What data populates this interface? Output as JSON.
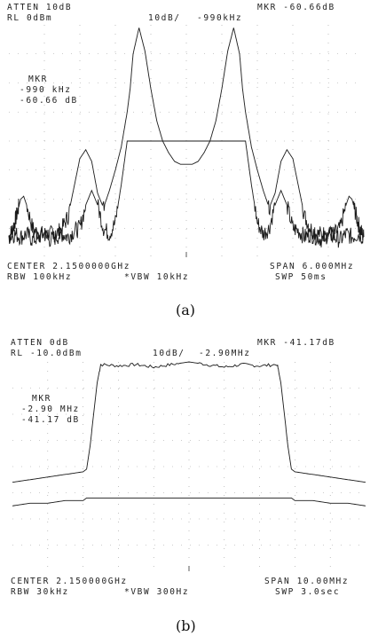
{
  "chart_data": [
    {
      "type": "line",
      "caption": "(a)",
      "header": {
        "atten": "ATTEN 10dB",
        "rl": "RL 0dBm",
        "scale": "10dB/",
        "mkr": "MKR -60.66dB",
        "mkr_freq": "-990kHz"
      },
      "marker_box": {
        "label": "MKR",
        "freq": "-990 kHz",
        "level": "-60.66 dB"
      },
      "footer": {
        "center": "CENTER 2.1500000GHz",
        "span": "SPAN 6.000MHz",
        "rbw": "RBW 100kHz",
        "vbw": "*VBW 10kHz",
        "sweep": "SWP 50ms"
      },
      "x_units": "MHz offset from center",
      "xlim": [
        -3.0,
        3.0
      ],
      "y_units": "dB (relative to RL)",
      "ylim": [
        -80,
        0
      ],
      "grid": true,
      "series": [
        {
          "x": [
            -3.0,
            -2.95,
            -2.9,
            -2.85,
            -2.8,
            -2.75,
            -2.7,
            -2.6,
            -2.5,
            -2.4,
            -2.3,
            -2.2,
            -2.1,
            -2.0,
            -1.9,
            -1.8,
            -1.7,
            -1.6,
            -1.5,
            -1.4,
            -1.3,
            -1.2,
            -1.1,
            -1.0,
            -0.95,
            -0.9,
            -0.8,
            -0.7,
            -0.6,
            -0.5,
            -0.4,
            -0.3,
            -0.2,
            -0.1,
            0.0,
            0.1,
            0.2,
            0.3,
            0.4,
            0.5,
            0.6,
            0.7,
            0.8,
            0.9,
            0.95,
            1.0,
            1.1,
            1.2,
            1.3,
            1.4,
            1.5,
            1.6,
            1.7,
            1.8,
            1.9,
            2.0,
            2.1,
            2.2,
            2.3,
            2.4,
            2.5,
            2.6,
            2.7,
            2.75,
            2.8,
            2.85,
            2.9,
            2.95,
            3.0
          ],
          "y": [
            -73,
            -71,
            -68,
            -64,
            -60,
            -59,
            -62,
            -70,
            -72,
            -72,
            -72,
            -72,
            -70,
            -66,
            -56,
            -46,
            -43,
            -47,
            -58,
            -63,
            -57,
            -50,
            -42,
            -30,
            -22,
            -10,
            -1,
            -9,
            -22,
            -33,
            -40,
            -44,
            -47,
            -48,
            -48,
            -48,
            -47,
            -44,
            -40,
            -33,
            -22,
            -9,
            -1,
            -10,
            -22,
            -30,
            -42,
            -50,
            -57,
            -63,
            -58,
            -47,
            -43,
            -46,
            -56,
            -66,
            -70,
            -72,
            -72,
            -72,
            -72,
            -70,
            -62,
            -59,
            -60,
            -64,
            -68,
            -71,
            -73
          ]
        },
        {
          "x": [
            -3.0,
            -2.9,
            -2.8,
            -2.7,
            -2.6,
            -2.5,
            -2.4,
            -2.3,
            -2.2,
            -2.1,
            -2.0,
            -1.9,
            -1.8,
            -1.7,
            -1.6,
            -1.5,
            -1.4,
            -1.3,
            -1.2,
            -1.1,
            -1.0,
            1.0,
            1.1,
            1.2,
            1.3,
            1.4,
            1.5,
            1.6,
            1.7,
            1.8,
            1.9,
            2.0,
            2.1,
            2.2,
            2.3,
            2.4,
            2.5,
            2.6,
            2.7,
            2.8,
            2.9,
            3.0
          ],
          "y": [
            -73,
            -72,
            -73,
            -72,
            -74,
            -73,
            -72,
            -74,
            -73,
            -72,
            -73,
            -71,
            -70,
            -62,
            -57,
            -62,
            -70,
            -72,
            -68,
            -55,
            -40,
            -40,
            -55,
            -68,
            -72,
            -70,
            -62,
            -57,
            -62,
            -70,
            -71,
            -73,
            -72,
            -73,
            -74,
            -72,
            -73,
            -74,
            -72,
            -73,
            -72,
            -73
          ]
        }
      ]
    },
    {
      "type": "line",
      "caption": "(b)",
      "header": {
        "atten": "ATTEN 0dB",
        "rl": "RL -10.0dBm",
        "scale": "10dB/",
        "mkr": "MKR -41.17dB",
        "mkr_freq": "-2.90MHz"
      },
      "marker_box": {
        "label": "MKR",
        "freq": "-2.90 MHz",
        "level": "-41.17 dB"
      },
      "footer": {
        "center": "CENTER 2.150000GHz",
        "span": "SPAN 10.00MHz",
        "rbw": "RBW 30kHz",
        "vbw": "*VBW 300Hz",
        "sweep": "SWP 3.0sec"
      },
      "x_units": "MHz offset from center",
      "xlim": [
        -5.0,
        5.0
      ],
      "y_units": "dB (relative to RL)",
      "ylim": [
        -80,
        0
      ],
      "grid": true,
      "series": [
        {
          "x": [
            -5.0,
            -4.5,
            -4.0,
            -3.5,
            -3.0,
            -2.9,
            -2.8,
            -2.7,
            -2.6,
            -2.5,
            -2.0,
            -1.5,
            -1.0,
            -0.5,
            0.0,
            0.5,
            1.0,
            1.5,
            2.0,
            2.5,
            2.6,
            2.7,
            2.8,
            2.9,
            3.0,
            3.5,
            4.0,
            4.5,
            5.0
          ],
          "y": [
            -46,
            -45,
            -44,
            -43,
            -42,
            -41,
            -32,
            -20,
            -8,
            -1,
            -1.5,
            -1,
            -2,
            -1,
            0,
            -1,
            -2,
            -1,
            -1.5,
            -1,
            -8,
            -20,
            -32,
            -41,
            -42,
            -43,
            -44,
            -45,
            -46
          ]
        },
        {
          "x": [
            -5.0,
            -4.5,
            -4.0,
            -3.5,
            -3.0,
            -2.9,
            -2.85,
            2.85,
            2.9,
            3.0,
            3.5,
            4.0,
            4.5,
            5.0
          ],
          "y": [
            -55,
            -54,
            -54,
            -53,
            -53,
            -52,
            -52,
            -52,
            -52,
            -53,
            -53,
            -54,
            -54,
            -55
          ]
        }
      ]
    }
  ]
}
